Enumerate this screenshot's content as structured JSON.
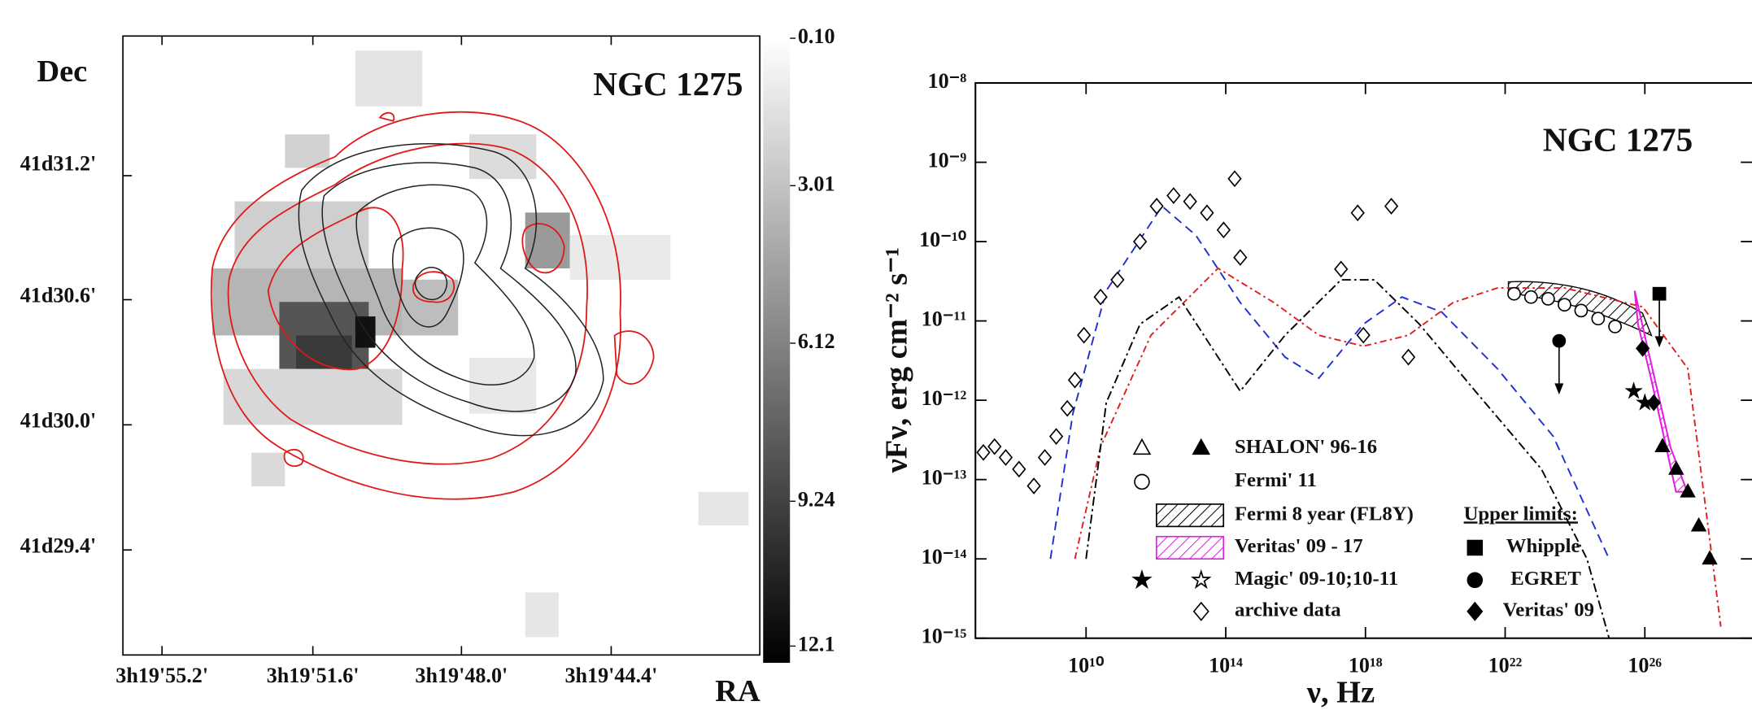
{
  "left_panel": {
    "title": "NGC 1275",
    "y_label": "Dec",
    "x_label": "RA",
    "dec_ticks": [
      "41d31.2'",
      "41d30.6'",
      "41d30.0'",
      "41d29.4'"
    ],
    "ra_ticks": [
      "3h19'55.2'",
      "3h19'51.6'",
      "3h19'48.0'",
      "3h19'44.4'"
    ],
    "colorbar": {
      "lim": [
        0.1,
        12.43
      ],
      "ticks": [
        {
          "value": 0.1,
          "label": "0.10"
        },
        3.01,
        6.12,
        9.24,
        12.1
      ]
    }
  },
  "chart_data": {
    "type": "scatter",
    "title": "NGC 1275",
    "x_label": "ν, Hz",
    "y_label": "νFν, erg cm⁻² s⁻¹",
    "log_x": true,
    "log_y": true,
    "xlim": [
      6800000.0,
      1.17e+29
    ],
    "ylim": [
      1e-15,
      1e-08
    ],
    "xticks": [
      {
        "value": 10000000000.0,
        "label": "10¹⁰"
      },
      {
        "value": 100000000000000.0,
        "label": "10¹⁴"
      },
      {
        "value": 1e+18,
        "label": "10¹⁸"
      },
      {
        "value": 1e+22,
        "label": "10²²"
      },
      {
        "value": 1e+26,
        "label": "10²⁶"
      }
    ],
    "yticks": [
      {
        "value": 1e-08,
        "label": "10⁻⁸"
      },
      {
        "value": 1e-09,
        "label": "10⁻⁹"
      },
      {
        "value": 1e-10,
        "label": "10⁻¹⁰"
      },
      {
        "value": 1e-11,
        "label": "10⁻¹¹"
      },
      {
        "value": 1e-12,
        "label": "10⁻¹²"
      },
      {
        "value": 1e-13,
        "label": "10⁻¹³"
      },
      {
        "value": 1e-14,
        "label": "10⁻¹⁴"
      },
      {
        "value": 1e-15,
        "label": "10⁻¹⁵"
      }
    ],
    "series": [
      {
        "name": "SHALON' 96-16",
        "marker": "triangle",
        "filled": true,
        "color": "#000000",
        "x": [
          3.2e+26,
          7.9e+26,
          1.7e+27,
          3.5e+27,
          7.2e+27
        ],
        "values": [
          2.6e-13,
          1.35e-13,
          7e-14,
          2.6e-14,
          1e-14
        ]
      },
      {
        "name": "Fermi' 11",
        "marker": "circle",
        "filled": false,
        "color": "#000000",
        "x": [
          1.8e+22,
          5.5e+22,
          1.7e+23,
          5e+23,
          1.5e+24,
          4.6e+24,
          1.4e+25
        ],
        "values": [
          2.2e-11,
          2e-11,
          1.9e-11,
          1.6e-11,
          1.35e-11,
          1.07e-11,
          8.5e-12
        ]
      },
      {
        "name": "Magic' 09-10;10-11",
        "marker": "star",
        "filled": true,
        "color": "#000000",
        "x": [
          4.8e+25,
          1e+26
        ],
        "values": [
          1.3e-12,
          9.3e-13
        ]
      },
      {
        "name": "archive data",
        "marker": "diamond",
        "filled": false,
        "color": "#000000",
        "x": [
          11500000.0,
          24000000.0,
          50000000.0,
          120000000.0,
          320000000.0,
          660000000.0,
          1400000000.0,
          2900000000.0,
          4800000000.0,
          8700000000.0,
          26000000000.0,
          79000000000.0,
          350000000000.0,
          1050000000000.0,
          3200000000000.0,
          9500000000000.0,
          29000000000000.0,
          87000000000000.0,
          180000000000000.0,
          260000000000000.0,
          2e+17,
          6e+17,
          8.7e+17,
          5.5e+18,
          1.7e+19
        ],
        "values": [
          2.2e-13,
          2.6e-13,
          1.9e-13,
          1.35e-13,
          8.3e-14,
          1.9e-13,
          3.5e-13,
          7.9e-13,
          1.8e-12,
          6.6e-12,
          2e-11,
          3.3e-11,
          1e-10,
          2.8e-10,
          3.8e-10,
          3.2e-10,
          2.3e-10,
          1.4e-10,
          6.2e-10,
          6.3e-11,
          4.5e-11,
          2.3e-10,
          6.6e-12,
          2.8e-10,
          3.5e-12
        ]
      },
      {
        "name": "Whipple",
        "marker": "square",
        "filled": true,
        "upper_limit": true,
        "color": "#000000",
        "x": [
          2.6e+26
        ],
        "values": [
          2.2e-11
        ]
      },
      {
        "name": "EGRET",
        "marker": "circle",
        "filled": true,
        "upper_limit": true,
        "color": "#000000",
        "x": [
          3.5e+23
        ],
        "values": [
          5.6e-12
        ]
      },
      {
        "name": "Veritas' 09",
        "marker": "diamond",
        "filled": true,
        "color": "#000000",
        "x": [
          8.7e+25,
          1.8e+26
        ],
        "values": [
          4.5e-12,
          9.3e-13
        ]
      }
    ],
    "bands": [
      {
        "name": "Fermi 8 year (FL8Y)",
        "color": "#000000"
      },
      {
        "name": "Veritas' 09 - 17",
        "color": "#e020e0"
      }
    ],
    "upper_limits_label": "Upper limits:",
    "models": [
      {
        "color": "#2030d0",
        "dash": "8 5",
        "x": [
          950000000.0,
          4200000000.0,
          38000000000.0,
          1500000000000.0,
          14000000000000.0,
          260000000000000.0,
          5000000000000000.0,
          4.6e+16,
          8.7e+17,
          1.1e+19,
          1.5e+20,
          6e+21,
          2.4e+23,
          9.5e+24
        ],
        "values": [
          1e-14,
          6.8e-13,
          2.4e-11,
          2.8e-10,
          1.2e-10,
          1.7e-11,
          3.5e-12,
          1.9e-12,
          9.1e-12,
          2e-11,
          1.3e-11,
          2.5e-12,
          3.5e-13,
          1e-14
        ]
      },
      {
        "color": "#e02020",
        "dash": "6 3 2 3",
        "x": [
          4800000000.0,
          26000000000.0,
          720000000000.0,
          60000000000000.0,
          2400000000000000.0,
          4.6e+16,
          8.7e+17,
          1.7e+19,
          3.2e+20,
          6e+21,
          5e+23,
          8.7e+25,
          1.7e+27,
          1.5e+28
        ],
        "values": [
          1e-14,
          2.6e-13,
          6.6e-12,
          4.6e-11,
          1.7e-11,
          6.6e-12,
          4.8e-12,
          6.6e-12,
          1.7e-11,
          2.6e-11,
          2.6e-11,
          1.5e-11,
          2.5e-12,
          1.4e-15
        ]
      },
      {
        "color": "#000000",
        "dash": "8 3 2 3",
        "x": [
          10000000000.0,
          38000000000.0,
          350000000000.0,
          4600000000000.0,
          60000000000000.0,
          260000000000000.0,
          5000000000000000.0,
          2e+17,
          1.8e+18,
          3.5e+19,
          1.4e+21,
          1.1e+23,
          2.2e+24,
          9.5e+24
        ],
        "values": [
          1e-14,
          9.3e-13,
          9.1e-12,
          2e-11,
          3.5e-12,
          1.3e-12,
          6.6e-12,
          3.3e-11,
          3.3e-11,
          9.1e-12,
          1.3e-12,
          1.35e-13,
          1e-14,
          1e-15
        ]
      }
    ]
  }
}
